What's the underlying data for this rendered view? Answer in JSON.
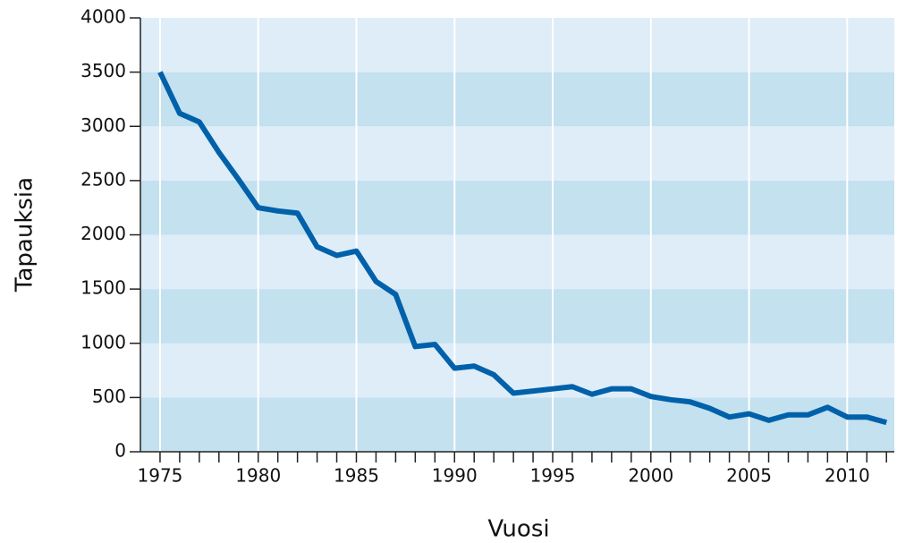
{
  "chart_data": {
    "type": "line",
    "xlabel": "Vuosi",
    "ylabel": "Tapauksia",
    "x": [
      1975,
      1976,
      1977,
      1978,
      1979,
      1980,
      1981,
      1982,
      1983,
      1984,
      1985,
      1986,
      1987,
      1988,
      1989,
      1990,
      1991,
      1992,
      1993,
      1994,
      1995,
      1996,
      1997,
      1998,
      1999,
      2000,
      2001,
      2002,
      2003,
      2004,
      2005,
      2006,
      2007,
      2008,
      2009,
      2010,
      2011,
      2012
    ],
    "series": [
      {
        "color": "#0061aa",
        "values": [
          3500,
          3120,
          3040,
          2760,
          2510,
          2250,
          2220,
          2200,
          1890,
          1810,
          1850,
          1570,
          1450,
          970,
          990,
          770,
          790,
          710,
          540,
          560,
          580,
          600,
          530,
          580,
          580,
          510,
          480,
          460,
          400,
          320,
          350,
          290,
          340,
          340,
          410,
          320,
          320,
          270
        ]
      }
    ],
    "xlim": [
      1974,
      2012.4
    ],
    "xticks": [
      1975,
      1980,
      1985,
      1990,
      1995,
      2000,
      2005,
      2010
    ],
    "ylim": [
      0,
      4000
    ],
    "yticks": [
      0,
      500,
      1000,
      1500,
      2000,
      2500,
      3000,
      3500,
      4000
    ],
    "grid": true,
    "band_colors": [
      "#c3e1ef",
      "#deedf8"
    ]
  }
}
